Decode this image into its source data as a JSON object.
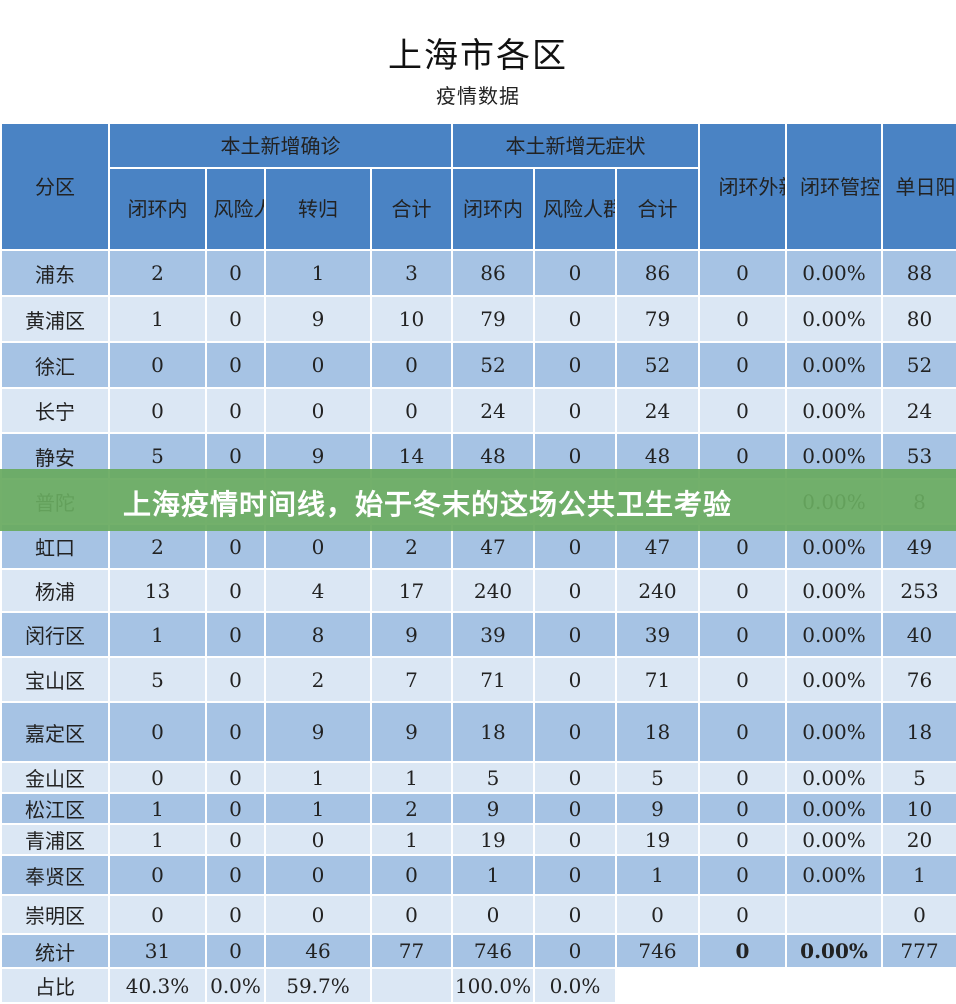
{
  "title": "上海市各区",
  "subtitle": "疫情数据",
  "headers": {
    "district": "分区",
    "group_confirmed": "本土新增确诊",
    "group_asymptomatic": "本土新增无症状",
    "closed_loop_outside": "闭环外新增",
    "closed_loop_ratio": "闭环管控外占比",
    "daily_positive": "单日阳性增量",
    "confirmed_sub": [
      "闭环内",
      "风险人群",
      "转归",
      "合计"
    ],
    "asym_sub": [
      "闭环内",
      "风险人群",
      "合计"
    ]
  },
  "rows": [
    [
      "浦东",
      "2",
      "0",
      "1",
      "3",
      "86",
      "0",
      "86",
      "0",
      "0.00%",
      "88"
    ],
    [
      "黄浦区",
      "1",
      "0",
      "9",
      "10",
      "79",
      "0",
      "79",
      "0",
      "0.00%",
      "80"
    ],
    [
      "徐汇",
      "0",
      "0",
      "0",
      "0",
      "52",
      "0",
      "52",
      "0",
      "0.00%",
      "52"
    ],
    [
      "长宁",
      "0",
      "0",
      "0",
      "0",
      "24",
      "0",
      "24",
      "0",
      "0.00%",
      "24"
    ],
    [
      "静安",
      "5",
      "0",
      "9",
      "14",
      "48",
      "0",
      "48",
      "0",
      "0.00%",
      "53"
    ],
    [
      "普陀",
      "",
      "",
      "",
      "",
      "",
      "",
      "",
      "",
      "0.00%",
      "8"
    ],
    [
      "虹口",
      "2",
      "0",
      "0",
      "2",
      "47",
      "0",
      "47",
      "0",
      "0.00%",
      "49"
    ],
    [
      "杨浦",
      "13",
      "0",
      "4",
      "17",
      "240",
      "0",
      "240",
      "0",
      "0.00%",
      "253"
    ],
    [
      "闵行区",
      "1",
      "0",
      "8",
      "9",
      "39",
      "0",
      "39",
      "0",
      "0.00%",
      "40"
    ],
    [
      "宝山区",
      "5",
      "0",
      "2",
      "7",
      "71",
      "0",
      "71",
      "0",
      "0.00%",
      "76"
    ],
    [
      "嘉定区",
      "0",
      "0",
      "9",
      "9",
      "18",
      "0",
      "18",
      "0",
      "0.00%",
      "18"
    ],
    [
      "金山区",
      "0",
      "0",
      "1",
      "1",
      "5",
      "0",
      "5",
      "0",
      "0.00%",
      "5"
    ],
    [
      "松江区",
      "1",
      "0",
      "1",
      "2",
      "9",
      "0",
      "9",
      "0",
      "0.00%",
      "10"
    ],
    [
      "青浦区",
      "1",
      "0",
      "0",
      "1",
      "19",
      "0",
      "19",
      "0",
      "0.00%",
      "20"
    ],
    [
      "奉贤区",
      "0",
      "0",
      "0",
      "0",
      "1",
      "0",
      "1",
      "0",
      "0.00%",
      "1"
    ],
    [
      "崇明区",
      "0",
      "0",
      "0",
      "0",
      "0",
      "0",
      "0",
      "0",
      "",
      "0"
    ]
  ],
  "total": [
    "统计",
    "31",
    "0",
    "46",
    "77",
    "746",
    "0",
    "746",
    "0",
    "0.00%",
    "777"
  ],
  "percent": [
    "占比",
    "40.3%",
    "0.0%",
    "59.7%",
    "",
    "100.0%",
    "0.0%"
  ],
  "banner": "上海疫情时间线，始于冬末的这场公共卫生考验",
  "colors": {
    "header_bg": "#4a83c4",
    "row_odd_bg": "#a6c3e4",
    "row_even_bg": "#dbe7f4",
    "banner_bg": "#68aa60"
  }
}
